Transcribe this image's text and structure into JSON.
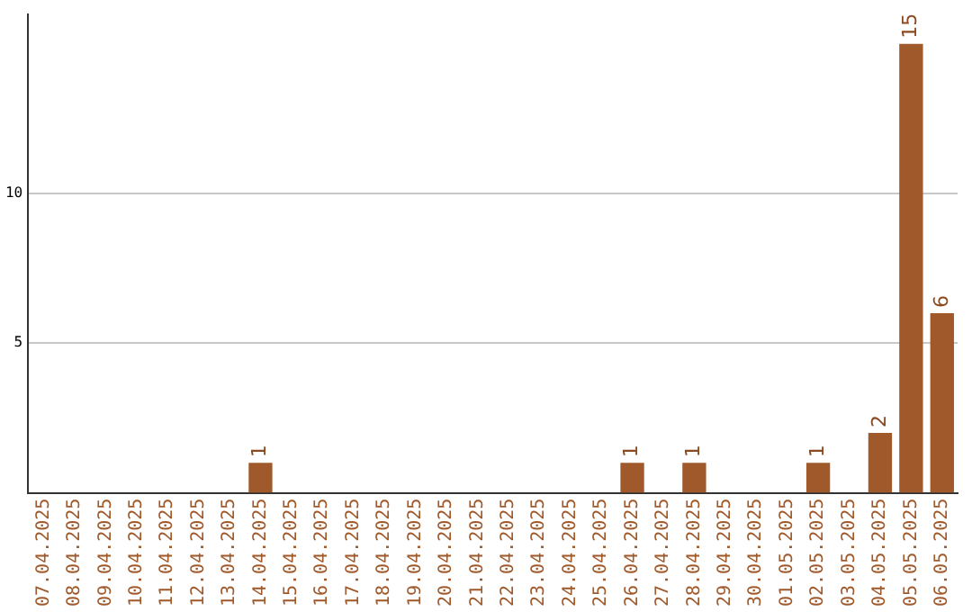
{
  "chart_data": {
    "type": "bar",
    "categories": [
      "07.04.2025",
      "08.04.2025",
      "09.04.2025",
      "10.04.2025",
      "11.04.2025",
      "12.04.2025",
      "13.04.2025",
      "14.04.2025",
      "15.04.2025",
      "16.04.2025",
      "17.04.2025",
      "18.04.2025",
      "19.04.2025",
      "20.04.2025",
      "21.04.2025",
      "22.04.2025",
      "23.04.2025",
      "24.04.2025",
      "25.04.2025",
      "26.04.2025",
      "27.04.2025",
      "28.04.2025",
      "29.04.2025",
      "30.04.2025",
      "01.05.2025",
      "02.05.2025",
      "03.05.2025",
      "04.05.2025",
      "05.05.2025",
      "06.05.2025"
    ],
    "values": [
      0,
      0,
      0,
      0,
      0,
      0,
      0,
      1,
      0,
      0,
      0,
      0,
      0,
      0,
      0,
      0,
      0,
      0,
      0,
      1,
      0,
      1,
      0,
      0,
      0,
      1,
      0,
      2,
      15,
      6
    ],
    "value_labels": [
      null,
      null,
      null,
      null,
      null,
      null,
      null,
      "1",
      null,
      null,
      null,
      null,
      null,
      null,
      null,
      null,
      null,
      null,
      null,
      "1",
      null,
      "1",
      null,
      null,
      null,
      "1",
      null,
      "2",
      "15",
      "6"
    ],
    "color": "#a0592a",
    "ylim": [
      0,
      16
    ],
    "yticks": [
      5,
      10
    ],
    "grid": "y",
    "legend": false
  }
}
